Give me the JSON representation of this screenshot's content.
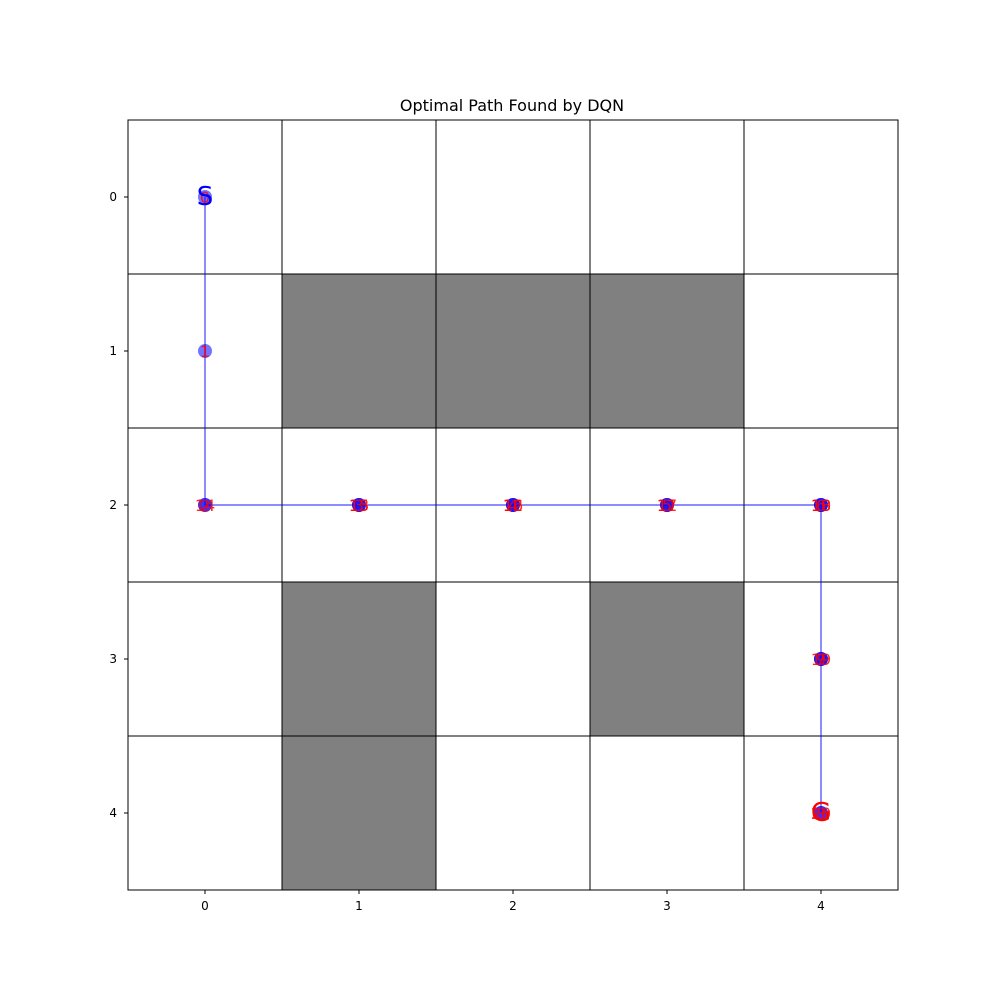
{
  "chart_data": {
    "type": "scatter",
    "title": "Optimal Path Found by DQN",
    "xlabel": "",
    "ylabel": "",
    "grid_size": [
      5,
      5
    ],
    "xlim": [
      -0.5,
      4.5
    ],
    "ylim": [
      4.5,
      -0.5
    ],
    "y_inverted": true,
    "x_ticks": [
      "0",
      "1",
      "2",
      "3",
      "4"
    ],
    "y_ticks": [
      "0",
      "1",
      "2",
      "3",
      "4"
    ],
    "grid": true,
    "obstacles": [
      [
        1,
        1
      ],
      [
        1,
        2
      ],
      [
        1,
        3
      ],
      [
        3,
        1
      ],
      [
        3,
        3
      ],
      [
        4,
        1
      ]
    ],
    "path": [
      [
        0,
        0
      ],
      [
        1,
        0
      ],
      [
        2,
        0
      ],
      [
        2,
        1
      ],
      [
        2,
        2
      ],
      [
        2,
        3
      ],
      [
        2,
        4
      ],
      [
        3,
        4
      ],
      [
        4,
        4
      ],
      [
        3,
        4
      ],
      [
        2,
        4
      ],
      [
        2,
        3
      ],
      [
        2,
        2
      ],
      [
        2,
        1
      ],
      [
        2,
        0
      ],
      [
        2,
        1
      ],
      [
        2,
        2
      ],
      [
        2,
        3
      ],
      [
        2,
        4
      ],
      [
        3,
        4
      ],
      [
        4,
        4
      ]
    ],
    "step_labels": [
      "0",
      "1",
      "2",
      "3",
      "4",
      "5",
      "6",
      "7",
      "8",
      "9",
      "10",
      "11",
      "12",
      "13",
      "14",
      "15",
      "16",
      "17",
      "18",
      "19",
      "20"
    ],
    "start": {
      "row": 0,
      "col": 0,
      "label": "S"
    },
    "goal": {
      "row": 4,
      "col": 4,
      "label": "G"
    },
    "colors": {
      "obstacle": "#808080",
      "free": "#ffffff",
      "grid_line": "#000000",
      "path": "#0000ff",
      "step_label": "#ff0000",
      "start_label": "#0000ff",
      "goal_label": "#ff0000"
    }
  }
}
